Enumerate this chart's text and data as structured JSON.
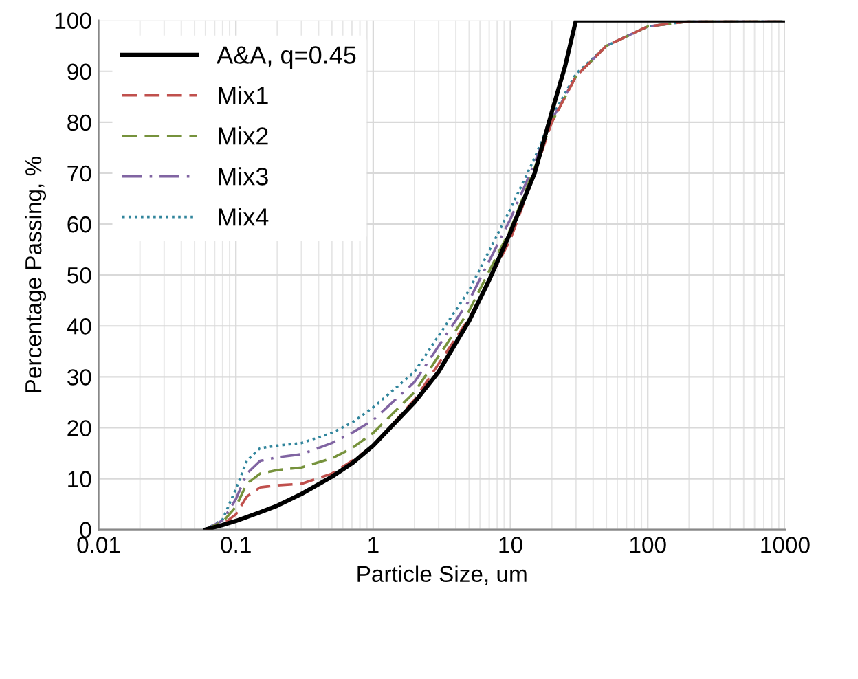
{
  "chart_data": {
    "type": "line",
    "xlabel": "Particle Size, um",
    "ylabel": "Percentage Passing, %",
    "log": "x",
    "grid": true,
    "legend": "top left",
    "xlim": [
      0.01,
      1000
    ],
    "xticks": [
      0.01,
      0.1,
      1,
      10,
      100,
      1000
    ],
    "ylim": [
      0,
      100
    ],
    "yticks": [
      0,
      10,
      20,
      30,
      40,
      50,
      60,
      70,
      80,
      90,
      100
    ],
    "series": [
      {
        "name": "A&A, q=0.45",
        "color": "#000000",
        "line_style": "solid",
        "x": [
          0.06,
          0.08,
          0.1,
          0.15,
          0.2,
          0.3,
          0.5,
          0.7,
          1,
          2,
          3,
          5,
          7,
          10,
          15,
          20,
          25,
          30,
          1000
        ],
        "values": [
          0,
          0.9,
          1.7,
          3.4,
          4.7,
          7,
          10.4,
          13,
          16.5,
          25,
          31,
          41,
          49,
          58.4,
          70,
          82,
          91,
          100,
          100
        ]
      },
      {
        "name": "Mix1",
        "color": "#c0504d",
        "line_style": "dashed",
        "x": [
          0.06,
          0.08,
          0.1,
          0.12,
          0.15,
          0.2,
          0.3,
          0.5,
          0.7,
          1,
          2,
          5,
          10,
          15,
          20,
          30,
          50,
          100,
          200,
          1000
        ],
        "values": [
          0,
          1,
          3,
          6.5,
          8.3,
          8.7,
          9,
          11,
          13.5,
          16.5,
          25.5,
          41.5,
          57,
          70,
          80,
          89,
          95,
          98.8,
          99.8,
          100
        ]
      },
      {
        "name": "Mix2",
        "color": "#76923c",
        "line_style": "dashed",
        "x": [
          0.06,
          0.08,
          0.1,
          0.12,
          0.15,
          0.2,
          0.3,
          0.5,
          0.7,
          1,
          2,
          5,
          10,
          15,
          20,
          30,
          50,
          100,
          200,
          1000
        ],
        "values": [
          0,
          1.5,
          4.5,
          9,
          11,
          11.7,
          12.2,
          14,
          16,
          19,
          27,
          43,
          59,
          71,
          80,
          89,
          95,
          98.8,
          99.8,
          100
        ]
      },
      {
        "name": "Mix3",
        "color": "#8064a2",
        "line_style": "dashdot",
        "x": [
          0.06,
          0.08,
          0.1,
          0.12,
          0.15,
          0.2,
          0.3,
          0.5,
          0.7,
          1,
          2,
          5,
          10,
          15,
          20,
          30,
          50,
          100,
          200,
          1000
        ],
        "values": [
          0,
          1.8,
          6,
          11,
          13.5,
          14.2,
          14.8,
          17,
          19,
          21.5,
          29,
          45,
          61,
          72,
          80.5,
          89,
          95,
          98.8,
          99.8,
          100
        ]
      },
      {
        "name": "Mix4",
        "color": "#31859c",
        "line_style": "dotted",
        "x": [
          0.06,
          0.08,
          0.1,
          0.12,
          0.15,
          0.2,
          0.3,
          0.5,
          0.7,
          1,
          2,
          5,
          10,
          15,
          20,
          30,
          50,
          100,
          200,
          1000
        ],
        "values": [
          0,
          2,
          8,
          13.5,
          16,
          16.5,
          17,
          19,
          21,
          24,
          31,
          47,
          63,
          73,
          81,
          89.5,
          95,
          98.8,
          99.8,
          100
        ]
      }
    ]
  }
}
